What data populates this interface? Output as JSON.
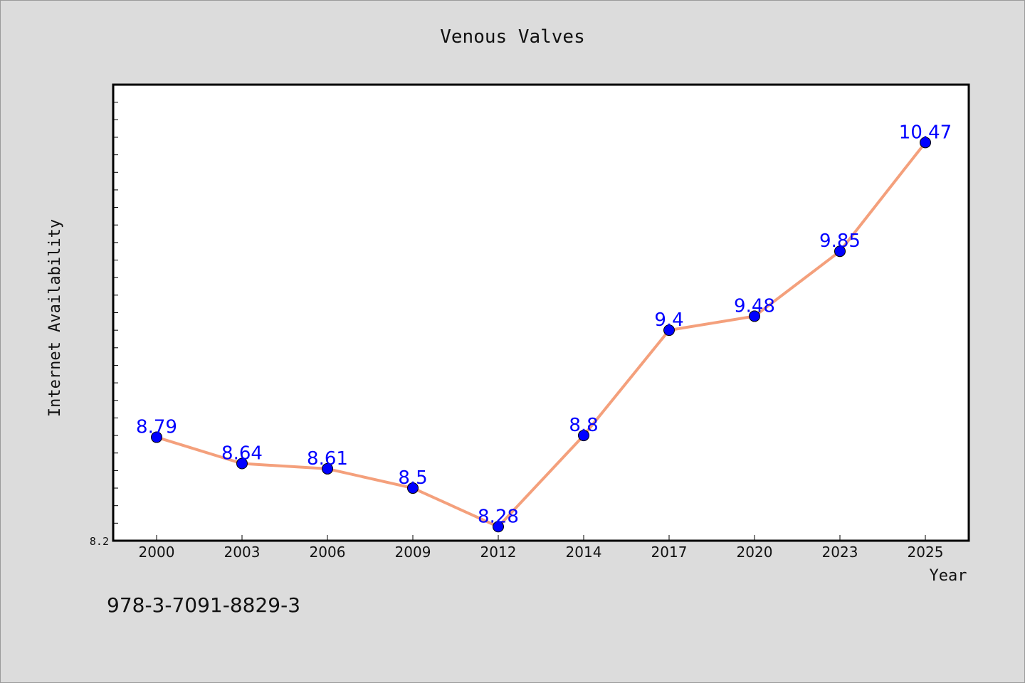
{
  "chart_data": {
    "type": "line",
    "title": "Venous Valves",
    "xlabel": "Year",
    "ylabel": "Internet Availability",
    "categories": [
      "2000",
      "2003",
      "2006",
      "2009",
      "2012",
      "2014",
      "2017",
      "2020",
      "2023",
      "2025"
    ],
    "series": [
      {
        "values": [
          8.79,
          8.64,
          8.61,
          8.5,
          8.28,
          8.8,
          9.4,
          9.48,
          9.85,
          10.47
        ],
        "data_labels": [
          "8.79",
          "8.64",
          "8.61",
          "8.5",
          "8.28",
          "8.8",
          "9.4",
          "9.48",
          "9.85",
          "10.47"
        ]
      }
    ],
    "ylim": [
      8.2,
      10.8
    ],
    "ytick_labels": [
      "8.2"
    ],
    "line_color": "#f4a07c",
    "marker_color": "#0000ff",
    "label_color": "#0000ff",
    "plot_background": "#ffffff",
    "page_background": "#dcdcdc",
    "grid": false,
    "legend": "none"
  },
  "footer": {
    "isbn": "978-3-7091-8829-3"
  }
}
